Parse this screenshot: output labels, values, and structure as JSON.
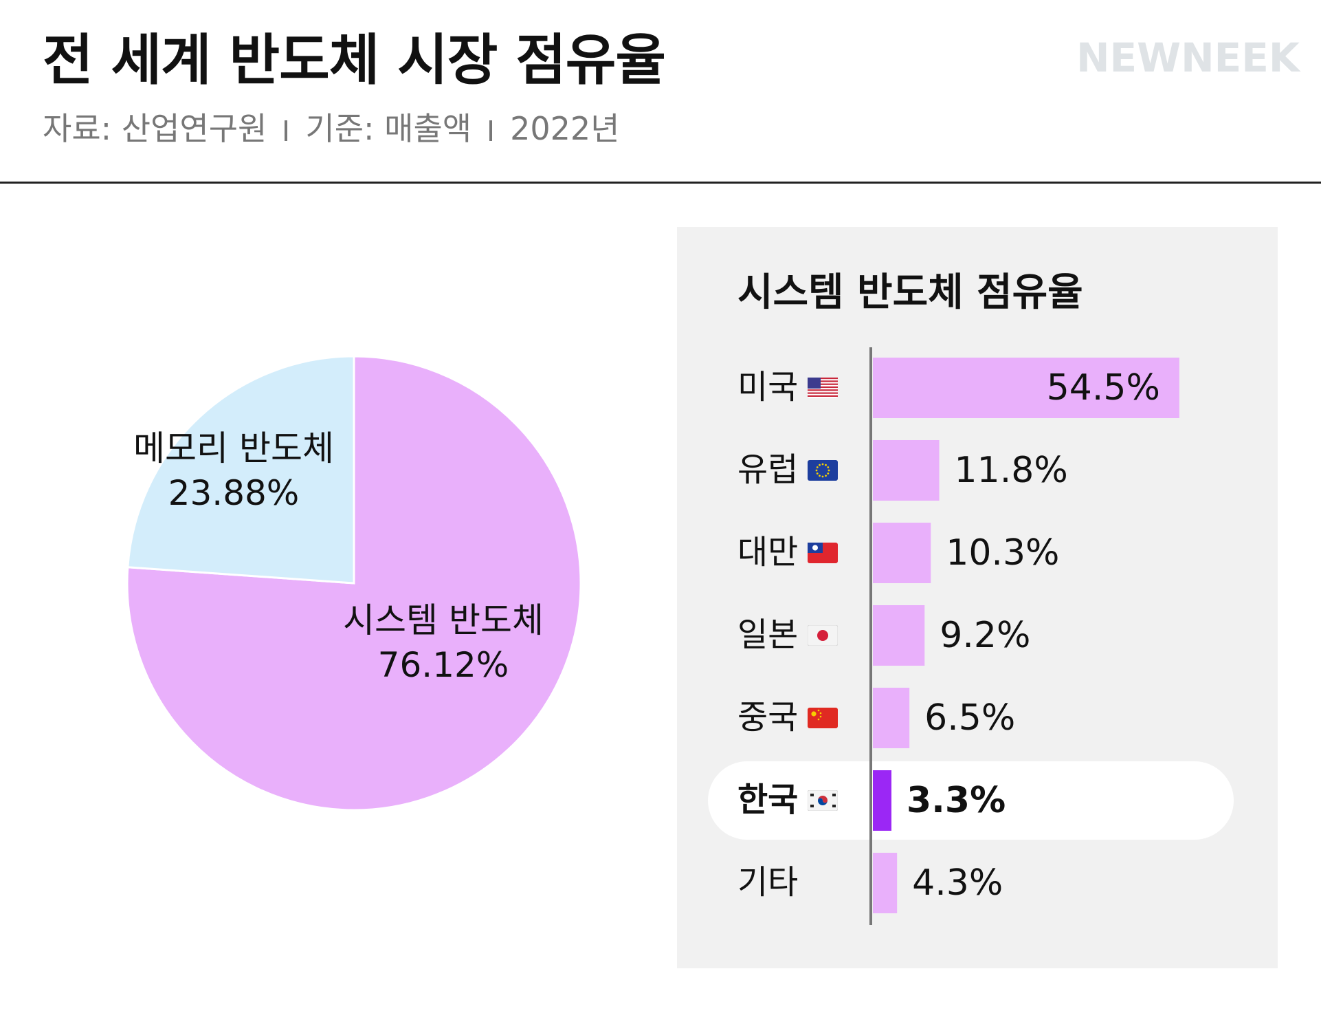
{
  "header": {
    "title": "전 세계 반도체 시장 점유율",
    "source": "자료: 산업연구원",
    "basis": "기준: 매출액",
    "year": "2022년",
    "brand": "NEWNEEK"
  },
  "colors": {
    "system": "#e9b0fb",
    "memory": "#d3edfb",
    "bar": "#e9b0fb",
    "highlight_bar": "#9b27f5",
    "panel_bg": "#f1f1f1",
    "axis": "#777777"
  },
  "chart_data": [
    {
      "type": "pie",
      "title": "",
      "slices": [
        {
          "label": "시스템 반도체",
          "value": 76.12,
          "value_label": "76.12%",
          "color": "#e9b0fb"
        },
        {
          "label": "메모리 반도체",
          "value": 23.88,
          "value_label": "23.88%",
          "color": "#d3edfb"
        }
      ]
    },
    {
      "type": "bar",
      "orientation": "horizontal",
      "title": "시스템 반도체 점유율",
      "categories": [
        "미국",
        "유럽",
        "대만",
        "일본",
        "중국",
        "한국",
        "기타"
      ],
      "values": [
        54.5,
        11.8,
        10.3,
        9.2,
        6.5,
        3.3,
        4.3
      ],
      "value_labels": [
        "54.5%",
        "11.8%",
        "10.3%",
        "9.2%",
        "6.5%",
        "3.3%",
        "4.3%"
      ],
      "flags": [
        "us-flag-icon",
        "eu-flag-icon",
        "taiwan-flag-icon",
        "japan-flag-icon",
        "china-flag-icon",
        "korea-flag-icon",
        ""
      ],
      "highlight": "한국",
      "xlim": [
        0,
        55
      ]
    }
  ]
}
